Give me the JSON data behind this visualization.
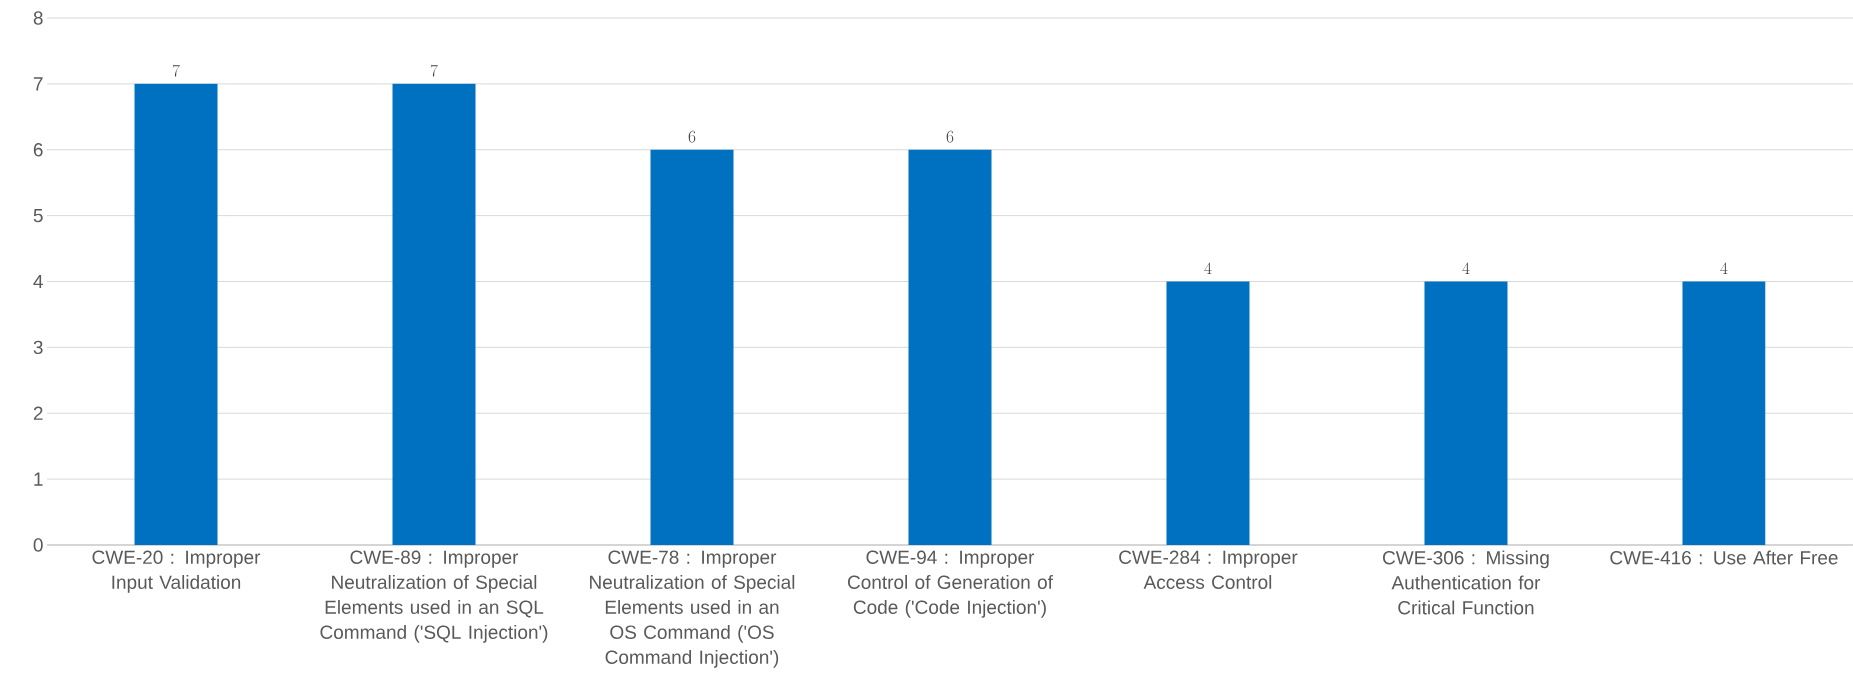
{
  "chart_data": {
    "type": "bar",
    "categories": [
      "CWE-20 : Improper Input Validation",
      "CWE-89 : Improper Neutralization of Special Elements used in an SQL Command ('SQL Injection')",
      "CWE-78 : Improper Neutralization of Special Elements used in an OS Command ('OS Command Injection')",
      "CWE-94 : Improper Control of Generation of Code ('Code Injection')",
      "CWE-284 : Improper Access Control",
      "CWE-306 : Missing Authentication for Critical Function",
      "CWE-416 : Use After Free"
    ],
    "values": [
      7,
      7,
      6,
      6,
      4,
      4,
      4
    ],
    "color": "#0070c0",
    "ylim": [
      0,
      8
    ],
    "yticks": [
      0,
      1,
      2,
      3,
      4,
      5,
      6,
      7,
      8
    ],
    "grid": "y",
    "data_labels": true
  }
}
